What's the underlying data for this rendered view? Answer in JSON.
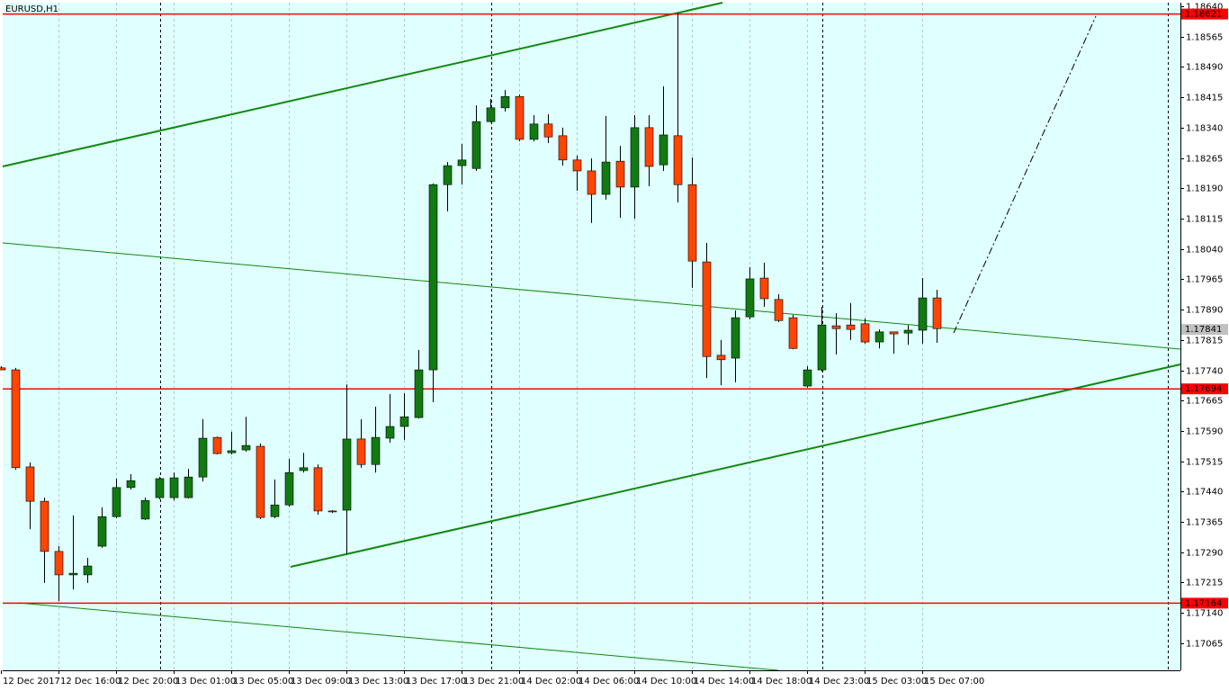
{
  "chart_data": {
    "type": "candlestick",
    "title": "EURUSD,H1",
    "categories": [
      "12 Dec 2017",
      null,
      null,
      null,
      "12 Dec 16:00",
      null,
      null,
      null,
      "12 Dec 20:00",
      null,
      null,
      null,
      "13 Dec 01:00",
      null,
      null,
      null,
      "13 Dec 05:00",
      null,
      null,
      null,
      "13 Dec 09:00",
      null,
      null,
      null,
      "13 Dec 13:00",
      null,
      null,
      null,
      "13 Dec 17:00",
      null,
      null,
      null,
      "13 Dec 21:00",
      null,
      null,
      null,
      "14 Dec 02:00",
      null,
      null,
      null,
      "14 Dec 06:00",
      null,
      null,
      null,
      "14 Dec 10:00",
      null,
      null,
      null,
      "14 Dec 14:00",
      null,
      null,
      null,
      "14 Dec 18:00",
      null,
      null,
      null,
      "14 Dec 23:00",
      null,
      null,
      null,
      "15 Dec 03:00",
      null,
      null,
      null,
      "15 Dec 07:00",
      null
    ],
    "open": [
      1.17746,
      1.17741,
      1.17501,
      1.17416,
      1.17292,
      1.17234,
      1.17234,
      1.17305,
      1.17378,
      1.1745,
      1.17372,
      1.17425,
      1.17425,
      1.17425,
      1.17476,
      1.17574,
      1.17536,
      1.17543,
      1.17552,
      1.17378,
      1.17407,
      1.17492,
      1.17499,
      1.17392,
      1.17394,
      1.1757,
      1.17507,
      1.17572,
      1.17601,
      1.17623,
      1.17741,
      1.18199,
      1.18246,
      1.18239,
      1.18355,
      1.18389,
      1.18417,
      1.18311,
      1.18349,
      1.1832,
      1.1826,
      1.18233,
      1.18175,
      1.18257,
      1.18193,
      1.1834,
      1.18248,
      1.1832,
      1.18199,
      1.18008,
      1.17777,
      1.1777,
      1.17872,
      1.17968,
      1.17915,
      1.1787,
      1.17701,
      1.17741,
      1.1785,
      1.17852,
      1.17855,
      1.1781,
      1.17835,
      1.17832,
      1.17839,
      1.17919
    ],
    "high": [
      1.1775,
      1.17746,
      1.17512,
      1.17425,
      1.17305,
      1.17381,
      1.17276,
      1.17401,
      1.17472,
      1.17483,
      1.17425,
      1.17476,
      1.17487,
      1.17496,
      1.17619,
      1.17576,
      1.17588,
      1.17625,
      1.17559,
      1.1747,
      1.17521,
      1.17536,
      1.17507,
      1.17394,
      1.17705,
      1.17619,
      1.1765,
      1.17681,
      1.17683,
      1.1779,
      1.18202,
      1.18255,
      1.183,
      1.18395,
      1.18411,
      1.18433,
      1.18422,
      1.18371,
      1.18373,
      1.1834,
      1.18271,
      1.18264,
      1.18369,
      1.18295,
      1.18371,
      1.18371,
      1.18442,
      1.18622,
      1.18266,
      1.18055,
      1.17815,
      1.17888,
      1.17995,
      1.18006,
      1.17928,
      1.17877,
      1.1775,
      1.17897,
      1.17881,
      1.17906,
      1.17868,
      1.17841,
      1.17835,
      1.17852,
      1.17968,
      1.17939
    ],
    "low": [
      1.17741,
      1.17494,
      1.17347,
      1.17214,
      1.17169,
      1.17198,
      1.17214,
      1.17301,
      1.17374,
      1.17445,
      1.1737,
      1.17421,
      1.17418,
      1.17423,
      1.17465,
      1.17532,
      1.17532,
      1.17539,
      1.17372,
      1.17374,
      1.17403,
      1.17487,
      1.17383,
      1.17387,
      1.17287,
      1.17499,
      1.17487,
      1.17561,
      1.17568,
      1.17621,
      1.17661,
      1.18133,
      1.18199,
      1.18233,
      1.18353,
      1.1838,
      1.18306,
      1.18306,
      1.18302,
      1.18246,
      1.18184,
      1.18104,
      1.18162,
      1.18117,
      1.18115,
      1.18195,
      1.18233,
      1.18155,
      1.17944,
      1.17721,
      1.17703,
      1.1771,
      1.17866,
      1.17897,
      1.17859,
      1.17792,
      1.17697,
      1.17737,
      1.17779,
      1.17815,
      1.17806,
      1.17794,
      1.17781,
      1.17803,
      1.17806,
      1.17808
    ],
    "close": [
      1.17741,
      1.17499,
      1.17416,
      1.17292,
      1.17234,
      1.17238,
      1.17256,
      1.17378,
      1.1745,
      1.17467,
      1.17418,
      1.17472,
      1.17474,
      1.17476,
      1.17572,
      1.17534,
      1.17541,
      1.17554,
      1.17376,
      1.17407,
      1.17487,
      1.17499,
      1.17392,
      1.1739,
      1.1757,
      1.17507,
      1.17574,
      1.17601,
      1.17625,
      1.17741,
      1.18199,
      1.18246,
      1.1826,
      1.18355,
      1.18389,
      1.18417,
      1.18311,
      1.18349,
      1.18317,
      1.1826,
      1.18233,
      1.18175,
      1.18255,
      1.18193,
      1.1834,
      1.18244,
      1.18322,
      1.18199,
      1.1801,
      1.17774,
      1.17766,
      1.1787,
      1.17966,
      1.17917,
      1.17863,
      1.17794,
      1.17741,
      1.17852,
      1.17843,
      1.17841,
      1.1781,
      1.17835,
      1.1783,
      1.17839,
      1.17919,
      1.17843
    ],
    "up_color": "#117a11",
    "down_color": "#ff4500",
    "background": "#e0ffff",
    "grid": true,
    "ylim": [
      1.16998,
      1.18649
    ],
    "yticks": [
      {
        "value": 1.1864,
        "label": "1.18640"
      },
      1.18565,
      {
        "value": 1.1849,
        "label": "1.18490"
      },
      1.18415,
      {
        "value": 1.1834,
        "label": "1.18340"
      },
      1.18265,
      {
        "value": 1.1819,
        "label": "1.18190"
      },
      1.18115,
      {
        "value": 1.1804,
        "label": "1.18040"
      },
      1.17965,
      {
        "value": 1.1789,
        "label": "1.17890"
      },
      1.17815,
      {
        "value": 1.1774,
        "label": "1.17740"
      },
      1.17665,
      {
        "value": 1.1759,
        "label": "1.17590"
      },
      1.17515,
      {
        "value": 1.1744,
        "label": "1.17440"
      },
      1.17365,
      {
        "value": 1.1729,
        "label": "1.17290"
      },
      1.17215,
      {
        "value": 1.1714,
        "label": "1.17140"
      },
      1.17065
    ],
    "levels": [
      {
        "value": 1.18621,
        "color": "#ff0000"
      },
      {
        "value": 1.17694,
        "color": "#ff0000"
      },
      {
        "value": 1.17164,
        "color": "#ff0000"
      }
    ],
    "current_price": 1.17841,
    "current_price_color": "#c0c0c0"
  }
}
